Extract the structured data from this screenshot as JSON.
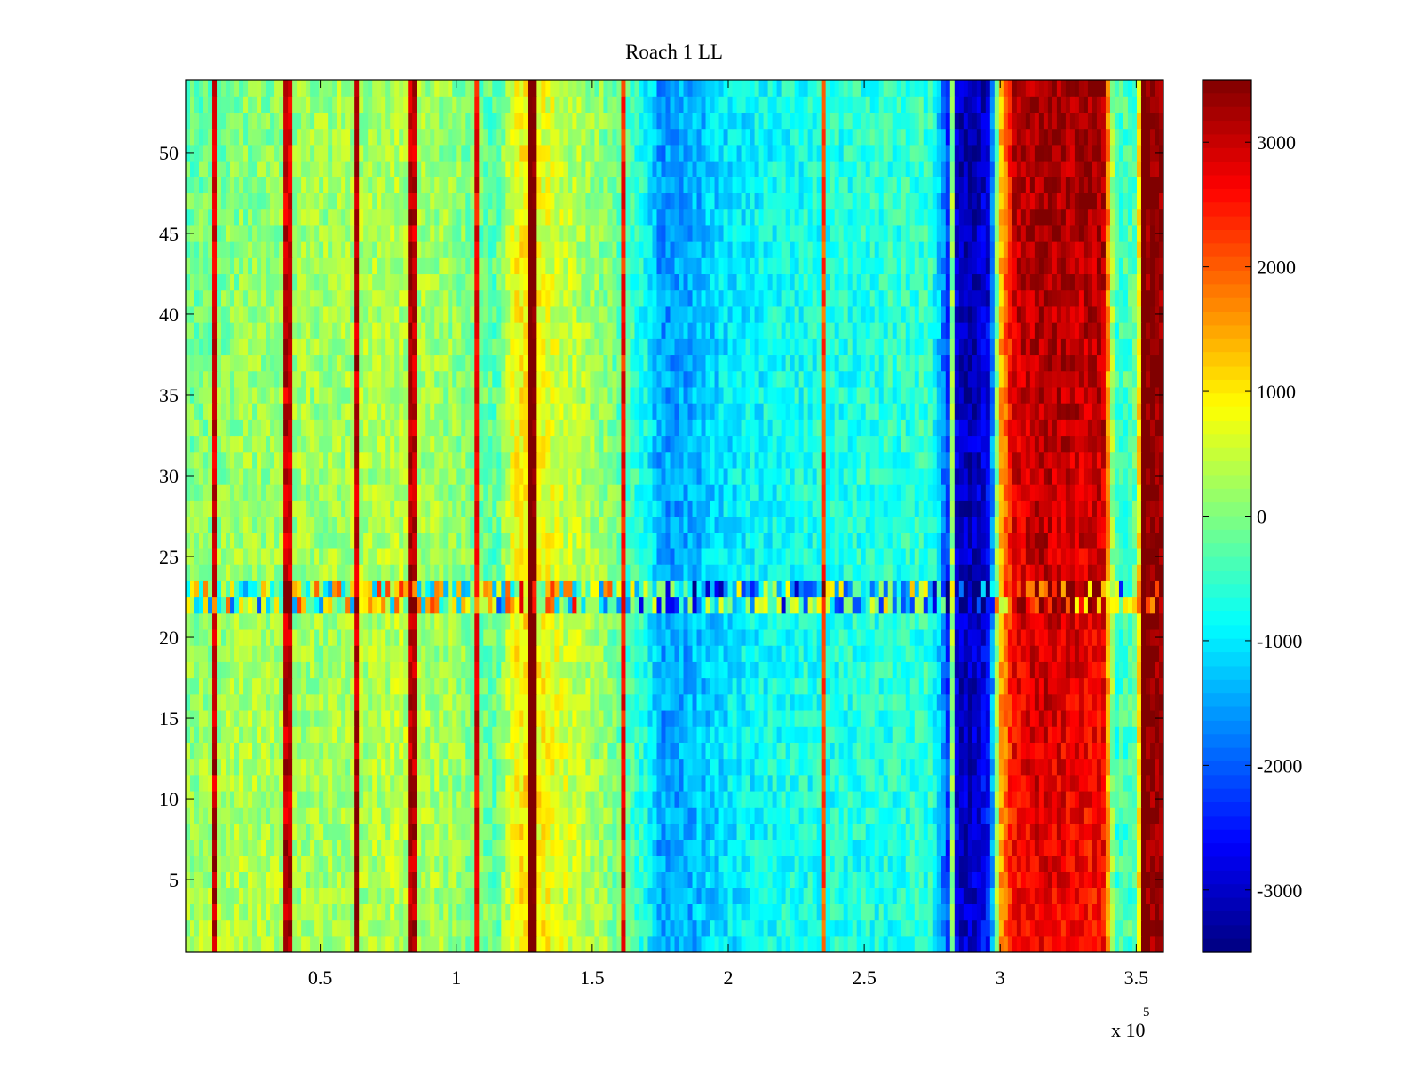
{
  "chart_data": {
    "type": "heatmap",
    "title": "Roach 1 LL",
    "xlabel": "",
    "ylabel": "",
    "x_exponent_label": "x 10",
    "x_exponent_power": "5",
    "x_multiplier": 100000,
    "xlim": [
      0.005,
      3.6
    ],
    "ylim": [
      0.5,
      54.5
    ],
    "x_ticks": [
      0.5,
      1,
      1.5,
      2,
      2.5,
      3,
      3.5
    ],
    "x_tick_labels": [
      "0.5",
      "1",
      "1.5",
      "2",
      "2.5",
      "3",
      "3.5"
    ],
    "y_ticks": [
      5,
      10,
      15,
      20,
      25,
      30,
      35,
      40,
      45,
      50
    ],
    "y_tick_labels": [
      "5",
      "10",
      "15",
      "20",
      "25",
      "30",
      "35",
      "40",
      "45",
      "50"
    ],
    "rows": 54,
    "colormap": "jet",
    "clim": [
      -3500,
      3500
    ],
    "colorbar": {
      "position": "right",
      "ticks": [
        -3000,
        -2000,
        -1000,
        0,
        1000,
        2000,
        3000
      ],
      "tick_labels": [
        "-3000",
        "-2000",
        "-1000",
        "0",
        "1000",
        "2000",
        "3000"
      ]
    },
    "column_profile": {
      "x": [
        0.005,
        0.2,
        0.5,
        0.8,
        1.0,
        1.15,
        1.22,
        1.26,
        1.4,
        1.55,
        1.7,
        1.75,
        1.85,
        2.0,
        2.2,
        2.5,
        2.75,
        2.82,
        2.86,
        2.9,
        2.96,
        3.0,
        3.05,
        3.15,
        3.25,
        3.38,
        3.42,
        3.5,
        3.53,
        3.6
      ],
      "upper_values": [
        -200,
        0,
        200,
        300,
        100,
        -300,
        800,
        900,
        400,
        0,
        -800,
        -1600,
        -1500,
        -1000,
        -800,
        -600,
        -500,
        -2600,
        -3200,
        -3200,
        -2900,
        1200,
        3100,
        3400,
        3300,
        3300,
        -500,
        -300,
        3500,
        3500
      ],
      "lower_values": [
        200,
        400,
        200,
        400,
        200,
        -200,
        900,
        1100,
        600,
        200,
        -700,
        -1500,
        -1400,
        -1000,
        -700,
        -700,
        -600,
        -2500,
        -3000,
        -3000,
        -2500,
        1500,
        2500,
        2800,
        2600,
        2500,
        -500,
        -300,
        3400,
        3400
      ]
    },
    "noisy_band_rows": [
      22,
      23
    ],
    "vertical_spikes_x": [
      0.11,
      0.38,
      0.63,
      0.84,
      1.07,
      1.27,
      1.28,
      1.62,
      2.35,
      2.82,
      3.53
    ]
  }
}
